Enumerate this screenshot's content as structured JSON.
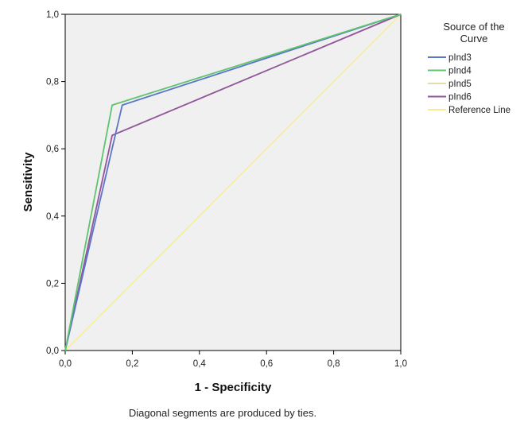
{
  "chart_data": {
    "type": "line",
    "xlabel": "1 - Specificity",
    "ylabel": "Sensitivity",
    "xlim": [
      0,
      1
    ],
    "ylim": [
      0,
      1
    ],
    "x_ticks": [
      "0,0",
      "0,2",
      "0,4",
      "0,6",
      "0,8",
      "1,0"
    ],
    "y_ticks": [
      "0,0",
      "0,2",
      "0,4",
      "0,6",
      "0,8",
      "1,0"
    ],
    "grid": false,
    "legend_position": "right",
    "legend_title": "Source of the Curve",
    "series": [
      {
        "name": "pInd3",
        "color": "#5b75c8",
        "points": [
          [
            0,
            0
          ],
          [
            0.17,
            0.73
          ],
          [
            1,
            1
          ]
        ]
      },
      {
        "name": "pInd4",
        "color": "#5ec46e",
        "points": [
          [
            0,
            0
          ],
          [
            0.14,
            0.73
          ],
          [
            1,
            1
          ]
        ]
      },
      {
        "name": "pInd5",
        "color": "#e5dca8",
        "points": [
          [
            0,
            0
          ],
          [
            0.14,
            0.64
          ],
          [
            1,
            1
          ]
        ]
      },
      {
        "name": "pInd6",
        "color": "#9256a0",
        "points": [
          [
            0,
            0
          ],
          [
            0.14,
            0.64
          ],
          [
            1,
            1
          ]
        ]
      },
      {
        "name": "Reference Line",
        "color": "#f7ee8a",
        "points": [
          [
            0,
            0
          ],
          [
            1,
            1
          ]
        ]
      }
    ],
    "footnote": "Diagonal segments are produced by ties."
  }
}
